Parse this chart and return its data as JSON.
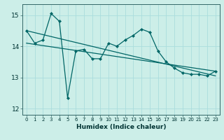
{
  "title": "",
  "xlabel": "Humidex (Indice chaleur)",
  "bg_color": "#cceee8",
  "grid_color": "#aadddd",
  "line_color": "#006666",
  "xlim": [
    -0.5,
    23.5
  ],
  "ylim": [
    11.8,
    15.35
  ],
  "yticks": [
    12,
    13,
    14,
    15
  ],
  "xticks": [
    0,
    1,
    2,
    3,
    4,
    5,
    6,
    7,
    8,
    9,
    10,
    11,
    12,
    13,
    14,
    15,
    16,
    17,
    18,
    19,
    20,
    21,
    22,
    23
  ],
  "series1_x": [
    0,
    1,
    2,
    3,
    4,
    5,
    6,
    7,
    8,
    9,
    10,
    11,
    12,
    13,
    14,
    15,
    16,
    17,
    18,
    19,
    20,
    21,
    22,
    23
  ],
  "series1_y": [
    14.5,
    14.1,
    14.2,
    15.05,
    14.8,
    12.35,
    13.85,
    13.9,
    13.6,
    13.6,
    14.1,
    14.0,
    14.2,
    14.35,
    14.55,
    14.45,
    13.85,
    13.5,
    13.3,
    13.15,
    13.1,
    13.1,
    13.05,
    13.2
  ],
  "series2_x": [
    0,
    23
  ],
  "series2_y": [
    14.5,
    13.05
  ],
  "series3_x": [
    0,
    23
  ],
  "series3_y": [
    14.1,
    13.2
  ]
}
